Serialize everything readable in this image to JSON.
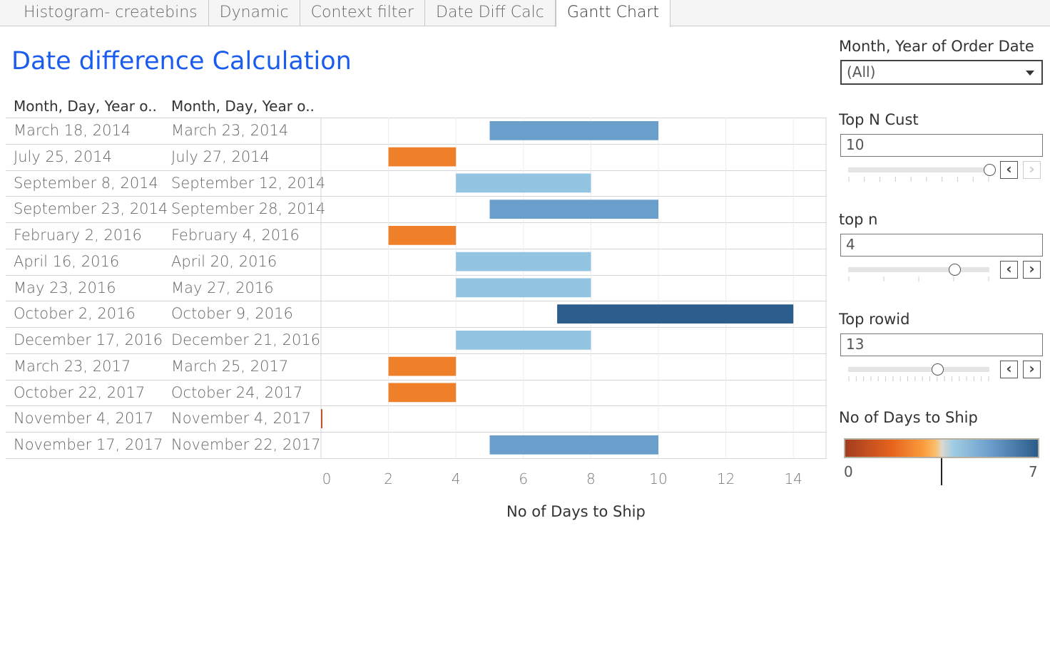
{
  "tabs": [
    {
      "label": "Histogram- createbins"
    },
    {
      "label": "Dynamic"
    },
    {
      "label": "Context filter"
    },
    {
      "label": "Date Diff Calc"
    },
    {
      "label": "Gantt Chart",
      "active": true
    }
  ],
  "title": "Date difference Calculation",
  "columns": [
    "Month, Day, Year o..",
    "Month, Day, Year o.."
  ],
  "filters": {
    "month_year": {
      "label": "Month, Year of Order Date",
      "value": "(All)"
    },
    "top_n_cust": {
      "label": "Top N Cust",
      "value": "10",
      "fraction": 1.0
    },
    "top_n": {
      "label": "top n",
      "value": "4",
      "fraction": 0.75
    },
    "top_rowid": {
      "label": "Top rowid",
      "value": "13",
      "fraction": 0.63
    }
  },
  "color_legend": {
    "title": "No of Days to Ship",
    "min": "0",
    "max": "7"
  },
  "chart_data": {
    "type": "gantt",
    "xlabel": "No of Days to Ship",
    "xlim": [
      0,
      15
    ],
    "xticks": [
      "0",
      "2",
      "4",
      "6",
      "8",
      "10",
      "12",
      "14"
    ],
    "grid": true,
    "rows": [
      {
        "start_date": "March 18, 2014",
        "end_date": "March 23, 2014",
        "start": 5,
        "days": 5
      },
      {
        "start_date": "July 25, 2014",
        "end_date": "July 27, 2014",
        "start": 2,
        "days": 2
      },
      {
        "start_date": "September 8, 2014",
        "end_date": "September 12, 2014",
        "start": 4,
        "days": 4
      },
      {
        "start_date": "September 23, 2014",
        "end_date": "September 28, 2014",
        "start": 5,
        "days": 5
      },
      {
        "start_date": "February 2, 2016",
        "end_date": "February 4, 2016",
        "start": 2,
        "days": 2
      },
      {
        "start_date": "April 16, 2016",
        "end_date": "April 20, 2016",
        "start": 4,
        "days": 4
      },
      {
        "start_date": "May 23, 2016",
        "end_date": "May 27, 2016",
        "start": 4,
        "days": 4
      },
      {
        "start_date": "October 2, 2016",
        "end_date": "October 9, 2016",
        "start": 7,
        "days": 7
      },
      {
        "start_date": "December 17, 2016",
        "end_date": "December 21, 2016",
        "start": 4,
        "days": 4
      },
      {
        "start_date": "March 23, 2017",
        "end_date": "March 25, 2017",
        "start": 2,
        "days": 2
      },
      {
        "start_date": "October 22, 2017",
        "end_date": "October 24, 2017",
        "start": 2,
        "days": 2
      },
      {
        "start_date": "November 4, 2017",
        "end_date": "November 4, 2017",
        "start": 0,
        "days": 0
      },
      {
        "start_date": "November 17, 2017",
        "end_date": "November 22, 2017",
        "start": 5,
        "days": 5
      }
    ],
    "colors": {
      "0": "#c0502a",
      "2": "#f07f2a",
      "4": "#93c4e2",
      "5": "#6a9fcb",
      "7": "#2c5d8c"
    }
  }
}
